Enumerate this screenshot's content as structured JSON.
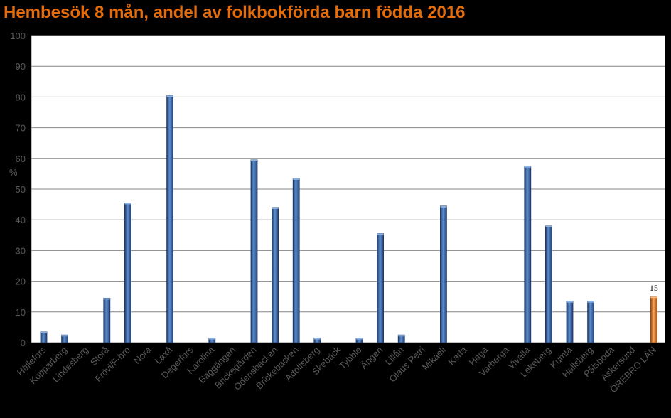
{
  "chart_data": {
    "type": "bar",
    "title": "Hembesök 8 mån, andel av folkbokförda barn födda 2016",
    "ylabel": "%",
    "xlabel": "",
    "ylim": [
      0,
      100
    ],
    "yticks": [
      0,
      10,
      20,
      30,
      40,
      50,
      60,
      70,
      80,
      90,
      100
    ],
    "grid": true,
    "categories": [
      "Hällefors",
      "Kopparberg",
      "Lindesberg",
      "Storå",
      "Frövi/F-bro",
      "Nora",
      "Laxå",
      "Degerfors",
      "Karolina",
      "Baggängen",
      "Brickegården",
      "Odensbacken",
      "Brickebacken",
      "Adolfsberg",
      "Skebäck",
      "Tybble",
      "Ängen",
      "Lillån",
      "Olaus Petri",
      "Mikaeli",
      "Karla",
      "Haga",
      "Varberga",
      "Vivalla",
      "Lekeberg",
      "Kumla",
      "Hallsberg",
      "Pålsboda",
      "Askersund",
      "ÖREBRO LÄN"
    ],
    "values": [
      3.5,
      2.5,
      0,
      14.5,
      45.5,
      0,
      80.5,
      0,
      1.5,
      0,
      59.5,
      44,
      53.5,
      1.5,
      0,
      1.5,
      35.5,
      2.5,
      0,
      44.5,
      0,
      0,
      0,
      57.5,
      38,
      13.5,
      13.5,
      0,
      0,
      15
    ],
    "highlight_index": 29,
    "data_labels": [
      {
        "index": 29,
        "text": "15"
      }
    ],
    "colors": {
      "bar": "#4F81BD",
      "bar_dark": "#1F3864",
      "highlight": "#F79646",
      "highlight_dark": "#974806",
      "title": "#E46C0A",
      "plot_bg": "#FFFFFF",
      "grid": "#868686",
      "text": "#595959"
    }
  }
}
